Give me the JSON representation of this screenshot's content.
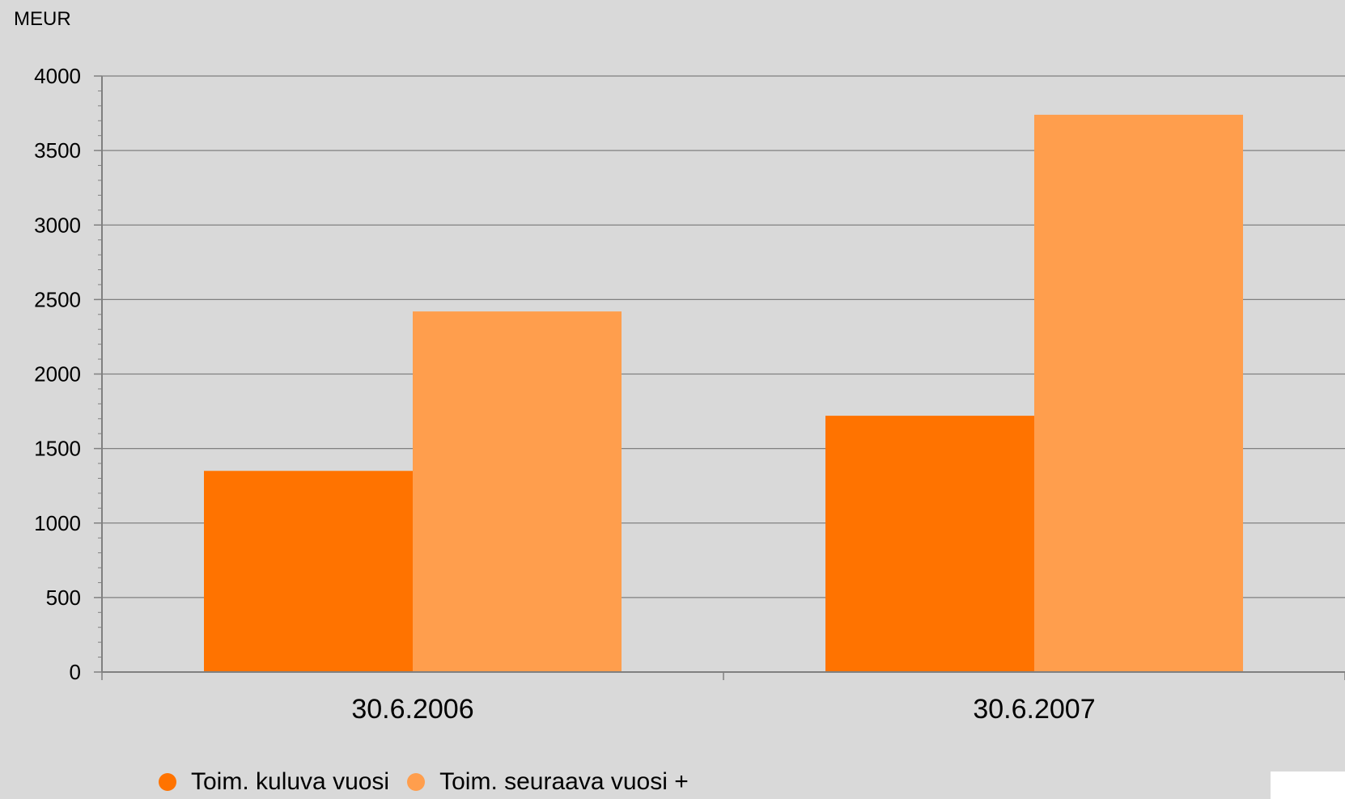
{
  "chart_data": {
    "type": "bar",
    "ylabel": "MEUR",
    "xlabel": "",
    "ylim": [
      0,
      4000
    ],
    "yticks": [
      0,
      500,
      1000,
      1500,
      2000,
      2500,
      3000,
      3500,
      4000
    ],
    "categories": [
      "30.6.2006",
      "30.6.2007"
    ],
    "series": [
      {
        "name": "Toim. kuluva vuosi",
        "values": [
          1350,
          1720
        ],
        "color": "#ff7300"
      },
      {
        "name": "Toim. seuraava vuosi +",
        "values": [
          2420,
          3740
        ],
        "color": "#ff9e4d"
      }
    ],
    "grid": true,
    "legend_position": "bottom-left"
  },
  "colors": {
    "background": "#d9d9d9",
    "gridline": "#808080",
    "axis": "#808080"
  }
}
